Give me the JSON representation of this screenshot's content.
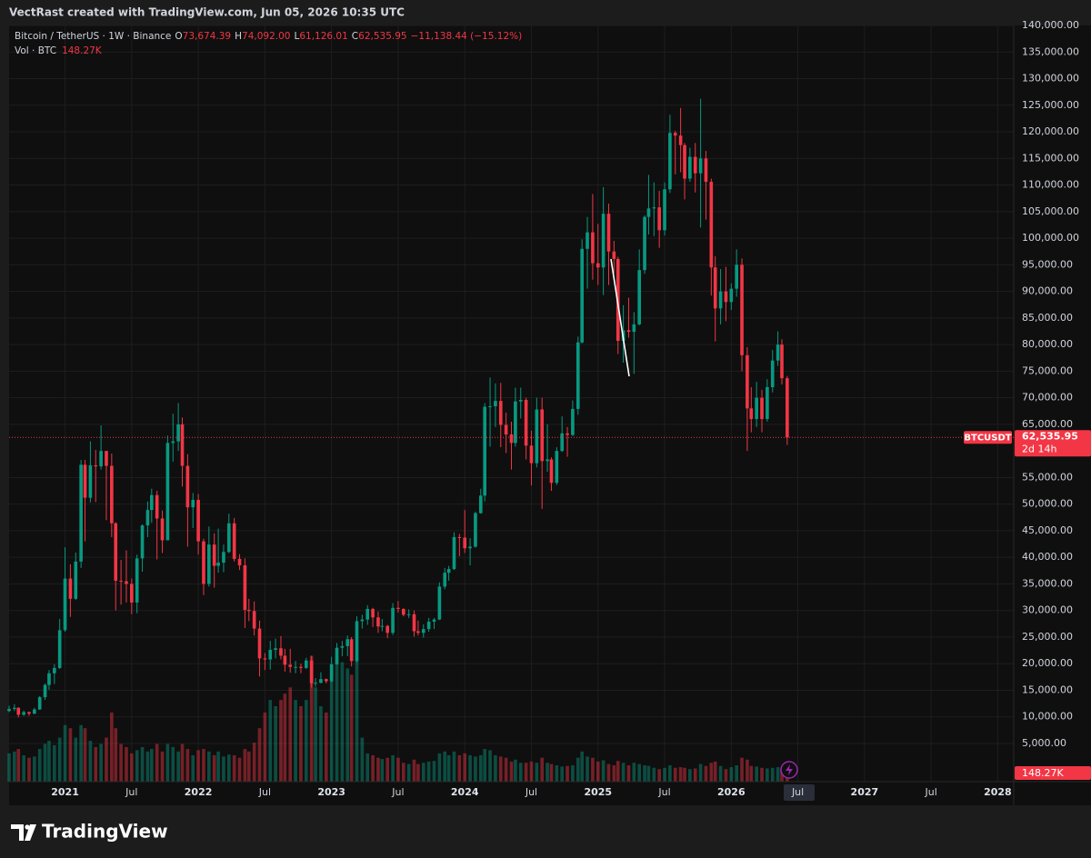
{
  "header": {
    "text": "VectRast created with TradingView.com, Jun 05, 2026 10:35 UTC"
  },
  "footer": {
    "brand": "TradingView"
  },
  "chart_data": {
    "type": "candlestick",
    "legend": {
      "symbol": "Bitcoin / TetherUS · 1W · Binance",
      "o_key": "O",
      "o": "73,674.39",
      "h_key": "H",
      "h": "74,092.00",
      "l_key": "L",
      "l": "61,126.01",
      "c_key": "C",
      "c": "62,535.95",
      "change": "−11,138.44 (−15.12%)",
      "vol_key": "Vol · BTC"
    },
    "price_tag": {
      "symbol": "BTCUSDT",
      "price": "62,535.95",
      "countdown": "2d 14h"
    },
    "volume_value_label": "148.27K",
    "up_color": "#089981",
    "down_color": "#f23645",
    "grid": true,
    "xlim": [
      2020.58,
      2028.12
    ],
    "xticks": [
      2021,
      {
        "value": 2021.5,
        "label": "Jul"
      },
      2022,
      {
        "value": 2022.5,
        "label": "Jul"
      },
      2023,
      {
        "value": 2023.5,
        "label": "Jul"
      },
      2024,
      {
        "value": 2024.5,
        "label": "Jul"
      },
      2025,
      {
        "value": 2025.5,
        "label": "Jul"
      },
      2026,
      {
        "value": 2026.5,
        "label": "Jul"
      },
      2027,
      {
        "value": 2027.5,
        "label": "Jul"
      },
      2028
    ],
    "ylim": [
      -2180,
      139660
    ],
    "yticks": [
      {
        "value": 5000,
        "label": "5,000.00"
      },
      {
        "value": 10000,
        "label": "10,000.00"
      },
      {
        "value": 15000,
        "label": "15,000.00"
      },
      {
        "value": 20000,
        "label": "20,000.00"
      },
      {
        "value": 25000,
        "label": "25,000.00"
      },
      {
        "value": 30000,
        "label": "30,000.00"
      },
      {
        "value": 35000,
        "label": "35,000.00"
      },
      {
        "value": 40000,
        "label": "40,000.00"
      },
      {
        "value": 45000,
        "label": "45,000.00"
      },
      {
        "value": 50000,
        "label": "50,000.00"
      },
      {
        "value": 55000,
        "label": "55,000.00"
      },
      {
        "value": 65000,
        "label": "65,000.00"
      },
      {
        "value": 70000,
        "label": "70,000.00"
      },
      {
        "value": 75000,
        "label": "75,000.00"
      },
      {
        "value": 80000,
        "label": "80,000.00"
      },
      {
        "value": 85000,
        "label": "85,000.00"
      },
      {
        "value": 90000,
        "label": "90,000.00"
      },
      {
        "value": 95000,
        "label": "95,000.00"
      },
      {
        "value": 100000,
        "label": "100,000.00"
      },
      {
        "value": 105000,
        "label": "105,000.00"
      },
      {
        "value": 110000,
        "label": "110,000.00"
      },
      {
        "value": 115000,
        "label": "115,000.00"
      },
      {
        "value": 120000,
        "label": "120,000.00"
      },
      {
        "value": 125000,
        "label": "125,000.00"
      },
      {
        "value": 130000,
        "label": "130,000.00"
      },
      {
        "value": 135000,
        "label": "135,000.00"
      },
      {
        "value": 140000,
        "label": "140,000.00"
      }
    ],
    "volume_ylim": [
      0,
      12000
    ],
    "x": [
      2020.58,
      2020.62,
      2020.65,
      2020.69,
      2020.73,
      2020.77,
      2020.81,
      2020.85,
      2020.88,
      2020.92,
      2020.96,
      2021.0,
      2021.04,
      2021.08,
      2021.12,
      2021.15,
      2021.19,
      2021.23,
      2021.27,
      2021.31,
      2021.35,
      2021.38,
      2021.42,
      2021.46,
      2021.5,
      2021.54,
      2021.58,
      2021.62,
      2021.65,
      2021.69,
      2021.73,
      2021.77,
      2021.81,
      2021.85,
      2021.88,
      2021.92,
      2021.96,
      2022.0,
      2022.04,
      2022.08,
      2022.12,
      2022.15,
      2022.19,
      2022.23,
      2022.27,
      2022.31,
      2022.35,
      2022.38,
      2022.42,
      2022.46,
      2022.5,
      2022.54,
      2022.58,
      2022.62,
      2022.65,
      2022.69,
      2022.73,
      2022.77,
      2022.81,
      2022.85,
      2022.88,
      2022.92,
      2022.96,
      2023.0,
      2023.04,
      2023.08,
      2023.12,
      2023.15,
      2023.19,
      2023.23,
      2023.27,
      2023.31,
      2023.35,
      2023.38,
      2023.42,
      2023.46,
      2023.5,
      2023.54,
      2023.58,
      2023.62,
      2023.65,
      2023.69,
      2023.73,
      2023.77,
      2023.81,
      2023.85,
      2023.88,
      2023.92,
      2023.96,
      2024.0,
      2024.04,
      2024.08,
      2024.12,
      2024.15,
      2024.19,
      2024.23,
      2024.27,
      2024.31,
      2024.35,
      2024.38,
      2024.42,
      2024.46,
      2024.5,
      2024.54,
      2024.58,
      2024.62,
      2024.65,
      2024.69,
      2024.73,
      2024.77,
      2024.81,
      2024.85,
      2024.88,
      2024.92,
      2024.96,
      2025.0,
      2025.04,
      2025.08,
      2025.12,
      2025.15,
      2025.19,
      2025.23,
      2025.27,
      2025.31,
      2025.35,
      2025.38,
      2025.42,
      2025.46,
      2025.5,
      2025.54,
      2025.58,
      2025.62,
      2025.65,
      2025.69,
      2025.73,
      2025.77,
      2025.81,
      2025.85,
      2025.88,
      2025.92,
      2025.96,
      2026.0,
      2026.04,
      2026.08,
      2026.12,
      2026.15,
      2026.19,
      2026.23,
      2026.27,
      2026.31,
      2026.35,
      2026.38,
      2026.42
    ],
    "ohlc": [
      [
        11100,
        12100,
        10900,
        11500
      ],
      [
        11500,
        12400,
        11100,
        11700
      ],
      [
        11700,
        11800,
        9900,
        10400
      ],
      [
        10400,
        11200,
        10200,
        10900
      ],
      [
        10900,
        11000,
        10200,
        10600
      ],
      [
        10600,
        11700,
        10500,
        11400
      ],
      [
        11400,
        13900,
        11300,
        13700
      ],
      [
        13700,
        16300,
        13200,
        16000
      ],
      [
        16000,
        18800,
        15100,
        18200
      ],
      [
        18200,
        19900,
        16200,
        19200
      ],
      [
        19200,
        28400,
        19000,
        26300
      ],
      [
        26300,
        41900,
        26000,
        36000
      ],
      [
        36000,
        38700,
        28800,
        32200
      ],
      [
        32200,
        40900,
        32000,
        39200
      ],
      [
        39200,
        58300,
        38000,
        57400
      ],
      [
        57400,
        58300,
        43000,
        51200
      ],
      [
        51200,
        61800,
        50300,
        57300
      ],
      [
        57300,
        60200,
        50400,
        57100
      ],
      [
        57100,
        64800,
        56500,
        60000
      ],
      [
        60000,
        60000,
        47000,
        57200
      ],
      [
        57200,
        59500,
        43800,
        46400
      ],
      [
        46400,
        46600,
        30000,
        35600
      ],
      [
        35600,
        39500,
        31100,
        35500
      ],
      [
        35500,
        41300,
        31500,
        35000
      ],
      [
        35000,
        36000,
        29300,
        31500
      ],
      [
        31500,
        40500,
        29500,
        39800
      ],
      [
        39800,
        46200,
        37300,
        46000
      ],
      [
        46000,
        50500,
        43800,
        48900
      ],
      [
        48900,
        52900,
        46500,
        51700
      ],
      [
        51700,
        52500,
        39600,
        47300
      ],
      [
        47300,
        48800,
        40800,
        43200
      ],
      [
        43200,
        62900,
        43200,
        61500
      ],
      [
        61500,
        67000,
        58000,
        61800
      ],
      [
        61800,
        69000,
        60000,
        65000
      ],
      [
        65000,
        66300,
        53300,
        57200
      ],
      [
        57200,
        59400,
        42000,
        49400
      ],
      [
        49400,
        52100,
        45500,
        50800
      ],
      [
        50800,
        51900,
        40500,
        43000
      ],
      [
        43000,
        43500,
        32900,
        35000
      ],
      [
        35000,
        45800,
        34500,
        42400
      ],
      [
        42400,
        44500,
        34300,
        38400
      ],
      [
        38400,
        45400,
        37100,
        39000
      ],
      [
        39000,
        42400,
        37200,
        41000
      ],
      [
        41000,
        48200,
        40800,
        46400
      ],
      [
        46400,
        47400,
        39200,
        39700
      ],
      [
        39700,
        40600,
        37600,
        38500
      ],
      [
        38500,
        39800,
        26700,
        30100
      ],
      [
        30100,
        32200,
        28000,
        29900
      ],
      [
        29900,
        31700,
        25300,
        26600
      ],
      [
        26600,
        28100,
        17600,
        21000
      ],
      [
        21000,
        22000,
        18800,
        20800
      ],
      [
        20800,
        24300,
        18900,
        22600
      ],
      [
        22600,
        24700,
        21000,
        22900
      ],
      [
        22900,
        25200,
        20800,
        21500
      ],
      [
        21500,
        22800,
        18500,
        19800
      ],
      [
        19800,
        22800,
        18300,
        19400
      ],
      [
        19400,
        20500,
        18200,
        19400
      ],
      [
        19400,
        20000,
        18200,
        19200
      ],
      [
        19200,
        21100,
        19000,
        20600
      ],
      [
        20600,
        21500,
        15500,
        16300
      ],
      [
        16300,
        17300,
        15700,
        16400
      ],
      [
        16400,
        18400,
        16300,
        17100
      ],
      [
        17100,
        17200,
        16300,
        16700
      ],
      [
        16700,
        21300,
        16500,
        19900
      ],
      [
        19900,
        23900,
        19800,
        23000
      ],
      [
        23000,
        24300,
        21400,
        23300
      ],
      [
        23300,
        25300,
        21400,
        24600
      ],
      [
        24600,
        25000,
        19500,
        20500
      ],
      [
        20500,
        28900,
        20200,
        28000
      ],
      [
        28000,
        29200,
        26600,
        28300
      ],
      [
        28300,
        31000,
        27300,
        30300
      ],
      [
        30300,
        30500,
        26900,
        28700
      ],
      [
        28700,
        29800,
        25800,
        27000
      ],
      [
        27000,
        28400,
        26100,
        27100
      ],
      [
        27100,
        27300,
        24800,
        25800
      ],
      [
        25800,
        31400,
        25400,
        30500
      ],
      [
        30500,
        31800,
        29600,
        30300
      ],
      [
        30300,
        30400,
        28900,
        29200
      ],
      [
        29200,
        30200,
        28600,
        29300
      ],
      [
        29300,
        30000,
        25100,
        26100
      ],
      [
        26100,
        28100,
        25300,
        25800
      ],
      [
        25800,
        27400,
        24900,
        26500
      ],
      [
        26500,
        28600,
        26000,
        27900
      ],
      [
        27900,
        28600,
        26500,
        28300
      ],
      [
        28300,
        35300,
        28200,
        34500
      ],
      [
        34500,
        38000,
        34000,
        37100
      ],
      [
        37100,
        38400,
        35600,
        37800
      ],
      [
        37800,
        44700,
        37600,
        43800
      ],
      [
        43800,
        44400,
        40200,
        43700
      ],
      [
        43700,
        48900,
        40800,
        41700
      ],
      [
        41700,
        43600,
        38500,
        42000
      ],
      [
        42000,
        48600,
        41800,
        48300
      ],
      [
        48300,
        52900,
        48200,
        51600
      ],
      [
        51600,
        69000,
        50500,
        68300
      ],
      [
        68300,
        73800,
        60800,
        68400
      ],
      [
        68400,
        72700,
        64500,
        69400
      ],
      [
        69400,
        72800,
        60700,
        64900
      ],
      [
        64900,
        67200,
        59600,
        63100
      ],
      [
        63100,
        65500,
        56500,
        61500
      ],
      [
        61500,
        71900,
        60800,
        69300
      ],
      [
        69300,
        71900,
        66100,
        69600
      ],
      [
        69600,
        70000,
        58400,
        61000
      ],
      [
        61000,
        63800,
        53500,
        57700
      ],
      [
        57700,
        70000,
        56900,
        67800
      ],
      [
        67800,
        70000,
        49100,
        58100
      ],
      [
        58100,
        65000,
        56100,
        58400
      ],
      [
        58400,
        58800,
        52500,
        54000
      ],
      [
        54000,
        60700,
        53600,
        60000
      ],
      [
        60000,
        66500,
        59800,
        63300
      ],
      [
        63300,
        64500,
        58900,
        63000
      ],
      [
        63000,
        69500,
        62800,
        67900
      ],
      [
        67900,
        81500,
        66800,
        80400
      ],
      [
        80400,
        99800,
        80200,
        98000
      ],
      [
        98000,
        104000,
        90500,
        101100
      ],
      [
        101100,
        108300,
        92200,
        95300
      ],
      [
        95300,
        102700,
        91200,
        94500
      ],
      [
        94500,
        109600,
        89300,
        104600
      ],
      [
        104600,
        106500,
        91200,
        97500
      ],
      [
        97500,
        99500,
        93400,
        96100
      ],
      [
        96100,
        96500,
        78200,
        80700
      ],
      [
        80700,
        87400,
        76600,
        82700
      ],
      [
        82700,
        88800,
        81300,
        82400
      ],
      [
        82400,
        86100,
        74500,
        83800
      ],
      [
        83800,
        97900,
        83600,
        94000
      ],
      [
        94000,
        104300,
        93300,
        104000
      ],
      [
        104000,
        111900,
        100700,
        105600
      ],
      [
        105600,
        110500,
        100400,
        105800
      ],
      [
        105800,
        108900,
        98200,
        101500
      ],
      [
        101500,
        110500,
        100500,
        109200
      ],
      [
        109200,
        123200,
        108500,
        119800
      ],
      [
        119800,
        120200,
        112000,
        119300
      ],
      [
        119300,
        124500,
        112400,
        117500
      ],
      [
        117500,
        117900,
        107300,
        111200
      ],
      [
        111200,
        117000,
        110600,
        115300
      ],
      [
        115300,
        117900,
        108600,
        112200
      ],
      [
        112200,
        126200,
        102000,
        115000
      ],
      [
        115000,
        116400,
        103500,
        110600
      ],
      [
        110600,
        111200,
        89200,
        94500
      ],
      [
        94500,
        96600,
        80600,
        86800
      ],
      [
        86800,
        94200,
        83800,
        90000
      ],
      [
        90000,
        94600,
        84400,
        88000
      ],
      [
        88000,
        91500,
        86500,
        90500
      ],
      [
        90500,
        97900,
        89000,
        95000
      ],
      [
        95000,
        96200,
        75000,
        78000
      ],
      [
        78000,
        79500,
        60000,
        68000
      ],
      [
        68000,
        72000,
        63500,
        66000
      ],
      [
        66000,
        73000,
        64500,
        70000
      ],
      [
        70000,
        71500,
        63500,
        66000
      ],
      [
        66000,
        73500,
        65500,
        72000
      ],
      [
        72000,
        79000,
        71000,
        77000
      ],
      [
        77000,
        82500,
        76000,
        80000
      ],
      [
        80000,
        81000,
        72500,
        73674.39
      ],
      [
        73674.39,
        74092.0,
        61126.01,
        62535.95
      ]
    ],
    "volume": [
      450,
      480,
      520,
      420,
      380,
      400,
      520,
      600,
      650,
      580,
      700,
      900,
      850,
      700,
      900,
      850,
      650,
      550,
      600,
      700,
      1100,
      850,
      600,
      550,
      450,
      500,
      550,
      480,
      520,
      600,
      480,
      600,
      550,
      480,
      600,
      520,
      420,
      500,
      520,
      480,
      420,
      480,
      400,
      430,
      420,
      380,
      520,
      480,
      620,
      850,
      1100,
      1300,
      1200,
      1300,
      1400,
      1500,
      1300,
      1200,
      1300,
      2000,
      1500,
      1200,
      1100,
      1600,
      2000,
      1900,
      1800,
      1700,
      2000,
      700,
      450,
      420,
      380,
      360,
      380,
      420,
      380,
      300,
      280,
      350,
      280,
      300,
      320,
      330,
      450,
      480,
      420,
      480,
      420,
      450,
      420,
      400,
      420,
      520,
      500,
      420,
      400,
      380,
      320,
      350,
      300,
      300,
      320,
      300,
      380,
      300,
      280,
      260,
      240,
      250,
      260,
      380,
      480,
      400,
      380,
      320,
      340,
      280,
      260,
      330,
      300,
      260,
      300,
      280,
      260,
      250,
      220,
      200,
      220,
      260,
      220,
      230,
      220,
      200,
      210,
      280,
      250,
      300,
      320,
      250,
      200,
      230,
      260,
      380,
      350,
      250,
      240,
      220,
      210,
      220,
      230,
      200,
      148.27
    ]
  }
}
